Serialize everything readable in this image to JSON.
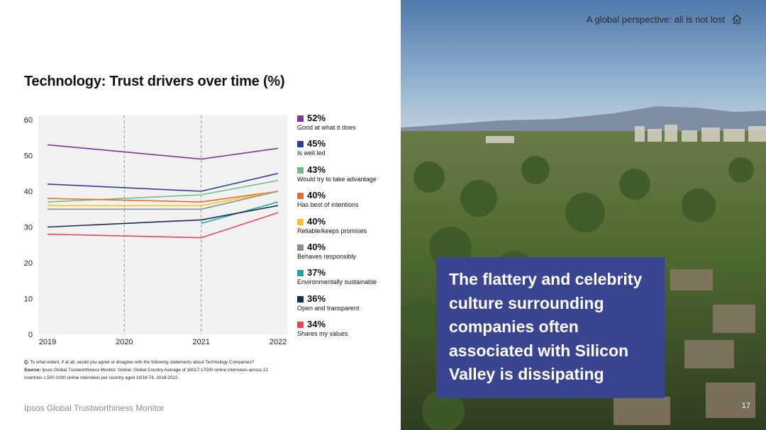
{
  "header": {
    "section_title": "A global perspective: all is not lost",
    "home_icon": "home-icon"
  },
  "chart_title": "Technology: Trust drivers over time (%)",
  "chart_data": {
    "type": "line",
    "title": "Technology: Trust drivers over time (%)",
    "x": [
      "2019",
      "2020",
      "2021",
      "2022"
    ],
    "ylim": [
      0,
      60
    ],
    "yticks": [
      "0",
      "10",
      "20",
      "30",
      "40",
      "50",
      "60"
    ],
    "xlabel": "",
    "ylabel": "",
    "grid": false,
    "series": [
      {
        "name": "Good at what it does",
        "pct": "52%",
        "color": "#7a3a96",
        "values": [
          53,
          51,
          49,
          52
        ]
      },
      {
        "name": "Is well led",
        "pct": "45%",
        "color": "#2f4098",
        "values": [
          42,
          41,
          40,
          45
        ]
      },
      {
        "name": "Would try to take advantage",
        "pct": "43%",
        "color": "#6fbf88",
        "values": [
          37,
          38,
          39,
          43
        ]
      },
      {
        "name": "Has best of intentions",
        "pct": "40%",
        "color": "#ec6a2c",
        "values": [
          38,
          37.5,
          37,
          40
        ]
      },
      {
        "name": "Reliable/keeps promises",
        "pct": "40%",
        "color": "#f3c623",
        "values": [
          36,
          36,
          36,
          40
        ]
      },
      {
        "name": "Behaves responsibly",
        "pct": "40%",
        "color": "#8f8f8f",
        "values": [
          35,
          35,
          35,
          40
        ]
      },
      {
        "name": "Environmentally sustainable",
        "pct": "37%",
        "color": "#1aa3b0",
        "values": [
          null,
          null,
          31,
          37
        ]
      },
      {
        "name": "Open and transparent",
        "pct": "36%",
        "color": "#1b2a4e",
        "values": [
          30,
          31,
          32,
          36
        ]
      },
      {
        "name": "Shares my values",
        "pct": "34%",
        "color": "#e8475a",
        "values": [
          28,
          27.5,
          27,
          34
        ]
      }
    ]
  },
  "footnote": {
    "q_label": "Q:",
    "q_text": "To what extent, if at all, would you agree or disagree with the following statements about Technology Companies?",
    "source_label": "Source:",
    "source_text": "Ipsos Global Trustworthiness Monitor: Global: Global Country Average of 16017-17500 online interviews across 21 countries c.500-1000 online interviews per country aged 16/18-74, 2018-2022."
  },
  "brand": "Ipsos Global Trustworthiness Monitor",
  "quote": "The flattery and celebrity culture surrounding companies often associated with Silicon Valley is dissipating",
  "page_number": "17",
  "colors": {
    "quote_bg": "#3a4592",
    "chart_bg": "#f1f1f1"
  }
}
